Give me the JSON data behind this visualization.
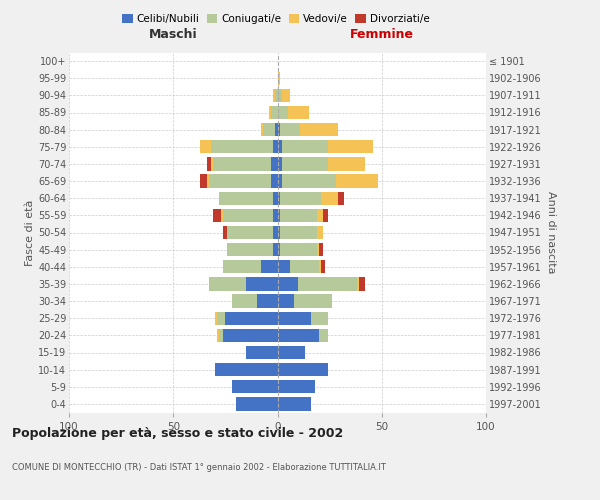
{
  "age_groups": [
    "0-4",
    "5-9",
    "10-14",
    "15-19",
    "20-24",
    "25-29",
    "30-34",
    "35-39",
    "40-44",
    "45-49",
    "50-54",
    "55-59",
    "60-64",
    "65-69",
    "70-74",
    "75-79",
    "80-84",
    "85-89",
    "90-94",
    "95-99",
    "100+"
  ],
  "birth_years": [
    "1997-2001",
    "1992-1996",
    "1987-1991",
    "1982-1986",
    "1977-1981",
    "1972-1976",
    "1967-1971",
    "1962-1966",
    "1957-1961",
    "1952-1956",
    "1947-1951",
    "1942-1946",
    "1937-1941",
    "1932-1936",
    "1927-1931",
    "1922-1926",
    "1917-1921",
    "1912-1916",
    "1907-1911",
    "1902-1906",
    "≤ 1901"
  ],
  "males": {
    "celibi": [
      20,
      22,
      30,
      15,
      26,
      25,
      10,
      15,
      8,
      2,
      2,
      2,
      2,
      3,
      3,
      2,
      1,
      0,
      0,
      0,
      0
    ],
    "coniugati": [
      0,
      0,
      0,
      0,
      2,
      4,
      12,
      18,
      18,
      22,
      22,
      24,
      26,
      30,
      28,
      30,
      6,
      3,
      1,
      0,
      0
    ],
    "vedovi": [
      0,
      0,
      0,
      0,
      1,
      1,
      0,
      0,
      0,
      0,
      0,
      1,
      0,
      1,
      1,
      5,
      1,
      1,
      1,
      0,
      0
    ],
    "divorziati": [
      0,
      0,
      0,
      0,
      0,
      0,
      0,
      0,
      0,
      0,
      2,
      4,
      0,
      3,
      2,
      0,
      0,
      0,
      0,
      0,
      0
    ]
  },
  "females": {
    "nubili": [
      16,
      18,
      24,
      13,
      20,
      16,
      8,
      10,
      6,
      1,
      1,
      1,
      1,
      2,
      2,
      2,
      1,
      0,
      0,
      0,
      0
    ],
    "coniugate": [
      0,
      0,
      0,
      0,
      4,
      8,
      18,
      28,
      14,
      18,
      18,
      18,
      20,
      26,
      22,
      22,
      10,
      5,
      2,
      0,
      0
    ],
    "vedove": [
      0,
      0,
      0,
      0,
      0,
      0,
      0,
      1,
      1,
      1,
      3,
      3,
      8,
      20,
      18,
      22,
      18,
      10,
      4,
      1,
      0
    ],
    "divorziate": [
      0,
      0,
      0,
      0,
      0,
      0,
      0,
      3,
      2,
      2,
      0,
      2,
      3,
      0,
      0,
      0,
      0,
      0,
      0,
      0,
      0
    ]
  },
  "colors": {
    "celibi_nubili": "#4472c4",
    "coniugati": "#b5c99a",
    "vedovi": "#f4c255",
    "divorziati": "#c0392b"
  },
  "title": "Popolazione per età, sesso e stato civile - 2002",
  "subtitle": "COMUNE DI MONTECCHIO (TR) - Dati ISTAT 1° gennaio 2002 - Elaborazione TUTTITALIA.IT",
  "xlabel_left": "Maschi",
  "xlabel_right": "Femmine",
  "ylabel_left": "Fasce di età",
  "ylabel_right": "Anni di nascita",
  "xlim": 100,
  "background_color": "#f0f0f0",
  "bar_bg_color": "#ffffff"
}
